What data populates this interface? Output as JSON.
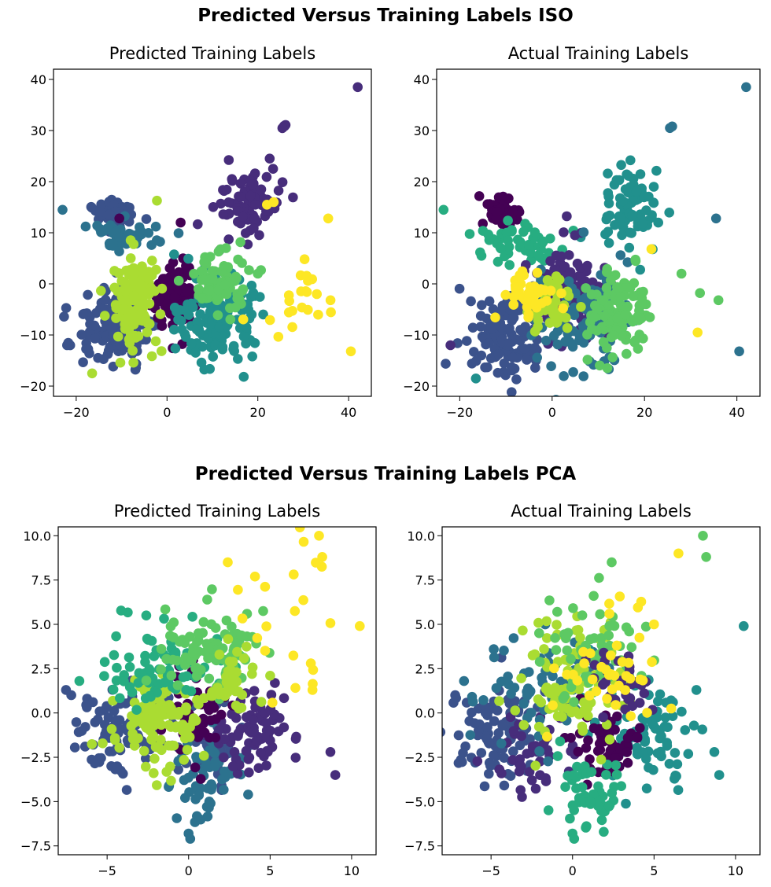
{
  "figure": {
    "title_iso": "Predicted Versus Training Labels ISO",
    "title_pca": "Predicted Versus Training Labels PCA"
  },
  "palette": [
    "#440154",
    "#472d7b",
    "#3b528b",
    "#2c728e",
    "#21908d",
    "#27ad81",
    "#5dc963",
    "#aadc32",
    "#fde725"
  ],
  "chart_data": [
    {
      "type": "scatter",
      "id": "iso-predicted",
      "title": "Predicted Training Labels",
      "xlim": [
        -25,
        45
      ],
      "ylim": [
        -22,
        42
      ],
      "xticks": [
        -20,
        0,
        20,
        40
      ],
      "yticks": [
        -20,
        -10,
        0,
        10,
        20,
        30,
        40
      ],
      "xtick_labels": [
        "−20",
        "0",
        "20",
        "40"
      ],
      "ytick_labels": [
        "−20",
        "−10",
        "0",
        "10",
        "20",
        "30",
        "40"
      ],
      "clusters": [
        {
          "label": 1,
          "color": "#472d7b",
          "cx": 18,
          "cy": 16,
          "sx": 3.5,
          "sy": 3.5,
          "n": 80
        },
        {
          "label": 1,
          "color": "#472d7b",
          "cx": 26,
          "cy": 30.8,
          "sx": 0.4,
          "sy": 0.3,
          "n": 4
        },
        {
          "label": 2,
          "color": "#3b528b",
          "cx": -11,
          "cy": 14,
          "sx": 2,
          "sy": 1.3,
          "n": 60
        },
        {
          "label": 2,
          "color": "#3b528b",
          "cx": -12,
          "cy": -9,
          "sx": 4.5,
          "sy": 4,
          "n": 130
        },
        {
          "label": 3,
          "color": "#2c728e",
          "cx": -10,
          "cy": 9,
          "sx": 5,
          "sy": 1.6,
          "n": 45
        },
        {
          "label": 0,
          "color": "#440154",
          "cx": 2,
          "cy": -3,
          "sx": 2.2,
          "sy": 3.5,
          "n": 110
        },
        {
          "label": 4,
          "color": "#21908d",
          "cx": 11,
          "cy": -7,
          "sx": 4,
          "sy": 4,
          "n": 150
        },
        {
          "label": 6,
          "color": "#5dc963",
          "cx": 11,
          "cy": 0,
          "sx": 3.5,
          "sy": 3,
          "n": 70
        },
        {
          "label": 7,
          "color": "#aadc32",
          "cx": -7,
          "cy": -3,
          "sx": 2.5,
          "sy": 4.5,
          "n": 140
        },
        {
          "label": 8,
          "color": "#fde725",
          "cx": 28,
          "cy": -5,
          "sx": 4,
          "sy": 5,
          "n": 20
        }
      ],
      "points": [
        {
          "x": 42,
          "y": 38.5,
          "color": "#472d7b"
        },
        {
          "x": -23,
          "y": 14.5,
          "color": "#2c728e"
        },
        {
          "x": 22,
          "y": 15.5,
          "color": "#fde725"
        },
        {
          "x": 23.5,
          "y": 16,
          "color": "#fde725"
        },
        {
          "x": 35.5,
          "y": 12.8,
          "color": "#fde725"
        },
        {
          "x": 40.5,
          "y": -13.2,
          "color": "#fde725"
        },
        {
          "x": 33,
          "y": -2,
          "color": "#fde725"
        },
        {
          "x": 36,
          "y": -3.2,
          "color": "#fde725"
        },
        {
          "x": -10.5,
          "y": 12.8,
          "color": "#440154"
        },
        {
          "x": 3,
          "y": 12,
          "color": "#440154"
        },
        {
          "x": -16.5,
          "y": -17.5,
          "color": "#aadc32"
        },
        {
          "x": -22,
          "y": -12,
          "color": "#3b528b"
        },
        {
          "x": 13,
          "y": 7,
          "color": "#5dc963"
        },
        {
          "x": 20,
          "y": 2,
          "color": "#5dc963"
        }
      ]
    },
    {
      "type": "scatter",
      "id": "iso-actual",
      "title": "Actual Training Labels",
      "xlim": [
        -25,
        45
      ],
      "ylim": [
        -22,
        42
      ],
      "xticks": [
        -20,
        0,
        20,
        40
      ],
      "yticks": [
        -20,
        -10,
        0,
        10,
        20,
        30,
        40
      ],
      "xtick_labels": [
        "−20",
        "0",
        "20",
        "40"
      ],
      "ytick_labels": [
        "−20",
        "−10",
        "0",
        "10",
        "20",
        "30",
        "40"
      ],
      "clusters": [
        {
          "label": 4,
          "color": "#21908d",
          "cx": 17,
          "cy": 15,
          "sx": 3.5,
          "sy": 4,
          "n": 80
        },
        {
          "label": 0,
          "color": "#440154",
          "cx": -10.5,
          "cy": 14,
          "sx": 2,
          "sy": 1.3,
          "n": 60
        },
        {
          "label": 5,
          "color": "#27ad81",
          "cx": -9,
          "cy": 8,
          "sx": 5,
          "sy": 2,
          "n": 50
        },
        {
          "label": 2,
          "color": "#3b528b",
          "cx": -10,
          "cy": -10,
          "sx": 4,
          "sy": 4,
          "n": 130
        },
        {
          "label": 1,
          "color": "#472d7b",
          "cx": 4,
          "cy": -2,
          "sx": 4,
          "sy": 4,
          "n": 120
        },
        {
          "label": 3,
          "color": "#2c728e",
          "cx": 6,
          "cy": -6,
          "sx": 5,
          "sy": 5,
          "n": 100
        },
        {
          "label": 6,
          "color": "#5dc963",
          "cx": 14,
          "cy": -6,
          "sx": 3.5,
          "sy": 3.5,
          "n": 120
        },
        {
          "label": 7,
          "color": "#aadc32",
          "cx": 0,
          "cy": -4,
          "sx": 2.5,
          "sy": 3,
          "n": 40
        },
        {
          "label": 8,
          "color": "#fde725",
          "cx": -6,
          "cy": -2,
          "sx": 3,
          "sy": 2.5,
          "n": 45
        }
      ],
      "points": [
        {
          "x": 42,
          "y": 38.5,
          "color": "#2c728e"
        },
        {
          "x": 26,
          "y": 30.8,
          "color": "#2c728e"
        },
        {
          "x": 25.5,
          "y": 30.5,
          "color": "#2c728e"
        },
        {
          "x": -23.5,
          "y": 14.5,
          "color": "#27ad81"
        },
        {
          "x": 35.5,
          "y": 12.8,
          "color": "#2c728e"
        },
        {
          "x": 40.5,
          "y": -13.2,
          "color": "#2c728e"
        },
        {
          "x": 32,
          "y": -1.8,
          "color": "#5dc963"
        },
        {
          "x": 36,
          "y": -3.2,
          "color": "#5dc963"
        },
        {
          "x": 28,
          "y": 2,
          "color": "#5dc963"
        },
        {
          "x": 31.5,
          "y": -9.5,
          "color": "#fde725"
        },
        {
          "x": 21.5,
          "y": 6.8,
          "color": "#fde725"
        },
        {
          "x": -22,
          "y": -12,
          "color": "#472d7b"
        },
        {
          "x": -16.5,
          "y": -18.5,
          "color": "#21908d"
        },
        {
          "x": 22,
          "y": 19,
          "color": "#21908d"
        }
      ]
    },
    {
      "type": "scatter",
      "id": "pca-predicted",
      "title": "Predicted Training Labels",
      "xlim": [
        -8,
        11.5
      ],
      "ylim": [
        -8,
        10.5
      ],
      "xticks": [
        -5,
        0,
        5,
        10
      ],
      "yticks": [
        -7.5,
        -5.0,
        -2.5,
        0.0,
        2.5,
        5.0,
        7.5,
        10.0
      ],
      "xtick_labels": [
        "−5",
        "0",
        "5",
        "10"
      ],
      "ytick_labels": [
        "−7.5",
        "−5.0",
        "−2.5",
        "0.0",
        "2.5",
        "5.0",
        "7.5",
        "10.0"
      ],
      "clusters": [
        {
          "label": 2,
          "color": "#3b528b",
          "cx": -4.5,
          "cy": -1,
          "sx": 1.5,
          "sy": 1.3,
          "n": 90
        },
        {
          "label": 2,
          "color": "#3b528b",
          "cx": 1.5,
          "cy": -1.8,
          "sx": 1.3,
          "sy": 1.2,
          "n": 50
        },
        {
          "label": 3,
          "color": "#2c728e",
          "cx": 1,
          "cy": -3.8,
          "sx": 1.1,
          "sy": 1.3,
          "n": 60
        },
        {
          "label": 1,
          "color": "#472d7b",
          "cx": 4,
          "cy": -1.3,
          "sx": 1.4,
          "sy": 1.1,
          "n": 80
        },
        {
          "label": 0,
          "color": "#440154",
          "cx": 0.5,
          "cy": 0.3,
          "sx": 0.8,
          "sy": 1.2,
          "n": 50
        },
        {
          "label": 7,
          "color": "#aadc32",
          "cx": -2,
          "cy": -0.5,
          "sx": 1.3,
          "sy": 1.2,
          "n": 110
        },
        {
          "label": 5,
          "color": "#27ad81",
          "cx": -1.5,
          "cy": 2.5,
          "sx": 1.8,
          "sy": 1.2,
          "n": 80
        },
        {
          "label": 6,
          "color": "#5dc963",
          "cx": 1.5,
          "cy": 3.5,
          "sx": 1.8,
          "sy": 1.2,
          "n": 90
        },
        {
          "label": 7,
          "color": "#aadc32",
          "cx": 3,
          "cy": 1.8,
          "sx": 1,
          "sy": 1,
          "n": 40
        },
        {
          "label": 8,
          "color": "#fde725",
          "cx": 5.5,
          "cy": 5,
          "sx": 1.7,
          "sy": 2.5,
          "n": 20
        }
      ],
      "points": [
        {
          "x": 10.5,
          "y": 4.9,
          "color": "#fde725"
        },
        {
          "x": 8,
          "y": 10,
          "color": "#fde725"
        },
        {
          "x": 8.2,
          "y": 8.8,
          "color": "#fde725"
        },
        {
          "x": 2.4,
          "y": 8.5,
          "color": "#fde725"
        },
        {
          "x": 7.6,
          "y": 1.3,
          "color": "#fde725"
        },
        {
          "x": 7.5,
          "y": 2.8,
          "color": "#fde725"
        },
        {
          "x": 8.7,
          "y": -2.2,
          "color": "#472d7b"
        },
        {
          "x": 9,
          "y": -3.5,
          "color": "#472d7b"
        },
        {
          "x": 0,
          "y": -6.8,
          "color": "#2c728e"
        },
        {
          "x": 0.1,
          "y": -7.1,
          "color": "#2c728e"
        },
        {
          "x": -7.2,
          "y": 1,
          "color": "#3b528b"
        },
        {
          "x": -2.6,
          "y": 5.5,
          "color": "#27ad81"
        }
      ]
    },
    {
      "type": "scatter",
      "id": "pca-actual",
      "title": "Actual Training Labels",
      "xlim": [
        -8,
        11.5
      ],
      "ylim": [
        -8,
        10.5
      ],
      "xticks": [
        -5,
        0,
        5,
        10
      ],
      "yticks": [
        -7.5,
        -5.0,
        -2.5,
        0.0,
        2.5,
        5.0,
        7.5,
        10.0
      ],
      "xtick_labels": [
        "−5",
        "0",
        "5",
        "10"
      ],
      "ytick_labels": [
        "−7.5",
        "−5.0",
        "−2.5",
        "0.0",
        "2.5",
        "5.0",
        "7.5",
        "10.0"
      ],
      "clusters": [
        {
          "label": 2,
          "color": "#3b528b",
          "cx": -4.5,
          "cy": -1,
          "sx": 1.5,
          "sy": 1.3,
          "n": 90
        },
        {
          "label": 1,
          "color": "#472d7b",
          "cx": -2.5,
          "cy": -2.2,
          "sx": 1.3,
          "sy": 1.2,
          "n": 40
        },
        {
          "label": 3,
          "color": "#2c728e",
          "cx": -2,
          "cy": 1.5,
          "sx": 2,
          "sy": 1.5,
          "n": 60
        },
        {
          "label": 4,
          "color": "#21908d",
          "cx": 4.5,
          "cy": -1,
          "sx": 1.5,
          "sy": 1.3,
          "n": 80
        },
        {
          "label": 0,
          "color": "#440154",
          "cx": 2,
          "cy": -1.8,
          "sx": 1,
          "sy": 1.1,
          "n": 60
        },
        {
          "label": 5,
          "color": "#27ad81",
          "cx": 1,
          "cy": -4.3,
          "sx": 1,
          "sy": 1.1,
          "n": 50
        },
        {
          "label": 7,
          "color": "#aadc32",
          "cx": 0,
          "cy": 1.8,
          "sx": 1.5,
          "sy": 1.8,
          "n": 100
        },
        {
          "label": 6,
          "color": "#5dc963",
          "cx": 1.5,
          "cy": 3.5,
          "sx": 1.8,
          "sy": 1.3,
          "n": 60
        },
        {
          "label": 1,
          "color": "#472d7b",
          "cx": 3,
          "cy": 1.5,
          "sx": 1,
          "sy": 1,
          "n": 30
        },
        {
          "label": 8,
          "color": "#fde725",
          "cx": 2,
          "cy": 2.5,
          "sx": 1.8,
          "sy": 1.8,
          "n": 40
        }
      ],
      "points": [
        {
          "x": 10.5,
          "y": 4.9,
          "color": "#21908d"
        },
        {
          "x": 8,
          "y": 10,
          "color": "#5dc963"
        },
        {
          "x": 8.2,
          "y": 8.8,
          "color": "#5dc963"
        },
        {
          "x": 2.4,
          "y": 8.5,
          "color": "#5dc963"
        },
        {
          "x": 6.5,
          "y": 9,
          "color": "#fde725"
        },
        {
          "x": 7.6,
          "y": 1.3,
          "color": "#21908d"
        },
        {
          "x": 8.7,
          "y": -2.2,
          "color": "#21908d"
        },
        {
          "x": 9,
          "y": -3.5,
          "color": "#21908d"
        },
        {
          "x": 0,
          "y": -6.8,
          "color": "#27ad81"
        },
        {
          "x": 0.1,
          "y": -7.1,
          "color": "#27ad81"
        },
        {
          "x": -7.2,
          "y": 1,
          "color": "#3b528b"
        },
        {
          "x": 5,
          "y": 5,
          "color": "#fde725"
        }
      ]
    }
  ]
}
